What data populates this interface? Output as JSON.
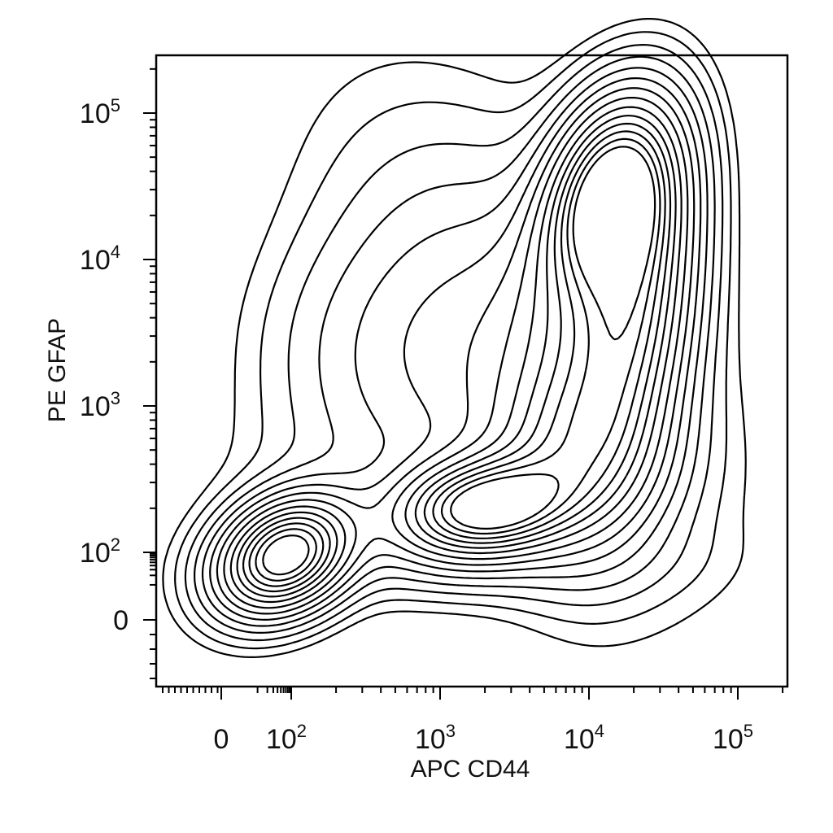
{
  "chart_data": {
    "type": "contour",
    "xlabel": "APC CD44",
    "ylabel": "PE GFAP",
    "x_scale": "biexponential",
    "y_scale": "biexponential",
    "x_ticks": [
      {
        "value": 0,
        "base": "0",
        "exp": ""
      },
      {
        "value": 100,
        "base": "10",
        "exp": "2"
      },
      {
        "value": 1000,
        "base": "10",
        "exp": "3"
      },
      {
        "value": 10000,
        "base": "10",
        "exp": "4"
      },
      {
        "value": 100000,
        "base": "10",
        "exp": "5"
      }
    ],
    "y_ticks": [
      {
        "value": 0,
        "base": "0",
        "exp": ""
      },
      {
        "value": 100,
        "base": "10",
        "exp": "2"
      },
      {
        "value": 1000,
        "base": "10",
        "exp": "3"
      },
      {
        "value": 10000,
        "base": "10",
        "exp": "4"
      },
      {
        "value": 100000,
        "base": "10",
        "exp": "5"
      }
    ],
    "populations": [
      {
        "x": 65,
        "y": 80
      },
      {
        "x": 2000,
        "y": 200
      },
      {
        "x": 14000,
        "y": 28000
      },
      {
        "x": 300,
        "y": 2500
      }
    ],
    "grid": false,
    "legend": "none"
  }
}
